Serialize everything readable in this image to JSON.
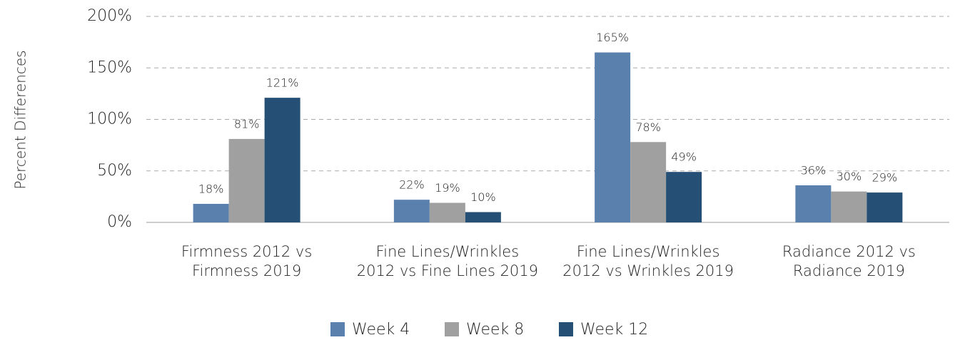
{
  "chart_data": {
    "type": "bar",
    "y_label": "Percent Differences",
    "categories": [
      "Firmness 2012 vs\nFirmness 2019",
      "Fine Lines/Wrinkles\n2012 vs Fine Lines 2019",
      "Fine Lines/Wrinkles\n2012 vs Wrinkles 2019",
      "Radiance 2012 vs\nRadiance 2019"
    ],
    "series": [
      {
        "name": "Week 4",
        "color": "#5a80ad",
        "values": [
          18,
          22,
          165,
          36
        ],
        "value_labels": [
          "18%",
          "22%",
          "165%",
          "36%"
        ]
      },
      {
        "name": "Week 8",
        "color": "#a0a0a0",
        "values": [
          81,
          19,
          78,
          30
        ],
        "value_labels": [
          "81%",
          "19%",
          "78%",
          "30%"
        ]
      },
      {
        "name": "Week 12",
        "color": "#254f74",
        "values": [
          121,
          10,
          49,
          29
        ],
        "value_labels": [
          "121%",
          "10%",
          "49%",
          "29%"
        ]
      }
    ],
    "ylim": [
      0,
      200
    ],
    "yticks": [
      {
        "value": 0,
        "label": "0%"
      },
      {
        "value": 50,
        "label": "50%"
      },
      {
        "value": 100,
        "label": "100%"
      },
      {
        "value": 150,
        "label": "150%"
      },
      {
        "value": 200,
        "label": "200%"
      }
    ],
    "grid": true,
    "legend": "bottom"
  }
}
